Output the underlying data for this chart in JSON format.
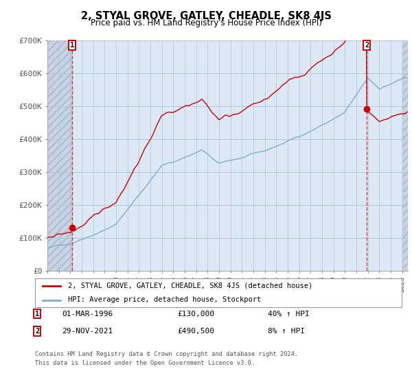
{
  "title": "2, STYAL GROVE, GATLEY, CHEADLE, SK8 4JS",
  "subtitle": "Price paid vs. HM Land Registry's House Price Index (HPI)",
  "ylim": [
    0,
    700000
  ],
  "yticks": [
    0,
    100000,
    200000,
    300000,
    400000,
    500000,
    600000,
    700000
  ],
  "ytick_labels": [
    "£0",
    "£100K",
    "£200K",
    "£300K",
    "£400K",
    "£500K",
    "£600K",
    "£700K"
  ],
  "xmin": 1994.0,
  "xmax": 2025.5,
  "sale1_date": 1996.17,
  "sale1_price": 130000,
  "sale2_date": 2021.91,
  "sale2_price": 490500,
  "property_color": "#cc0000",
  "hpi_color": "#7aaddb",
  "legend_property": "2, STYAL GROVE, GATLEY, CHEADLE, SK8 4JS (detached house)",
  "legend_hpi": "HPI: Average price, detached house, Stockport",
  "annotation1": "01-MAR-1996",
  "annotation1_price": "£130,000",
  "annotation1_hpi": "40% ↑ HPI",
  "annotation2": "29-NOV-2021",
  "annotation2_price": "£490,500",
  "annotation2_hpi": "8% ↑ HPI",
  "footer1": "Contains HM Land Registry data © Crown copyright and database right 2024.",
  "footer2": "This data is licensed under the Open Government Licence v3.0.",
  "background_color": "#dce8f5",
  "hatch_region_color": "#c8d4e0",
  "grid_color": "#b0c4d8"
}
